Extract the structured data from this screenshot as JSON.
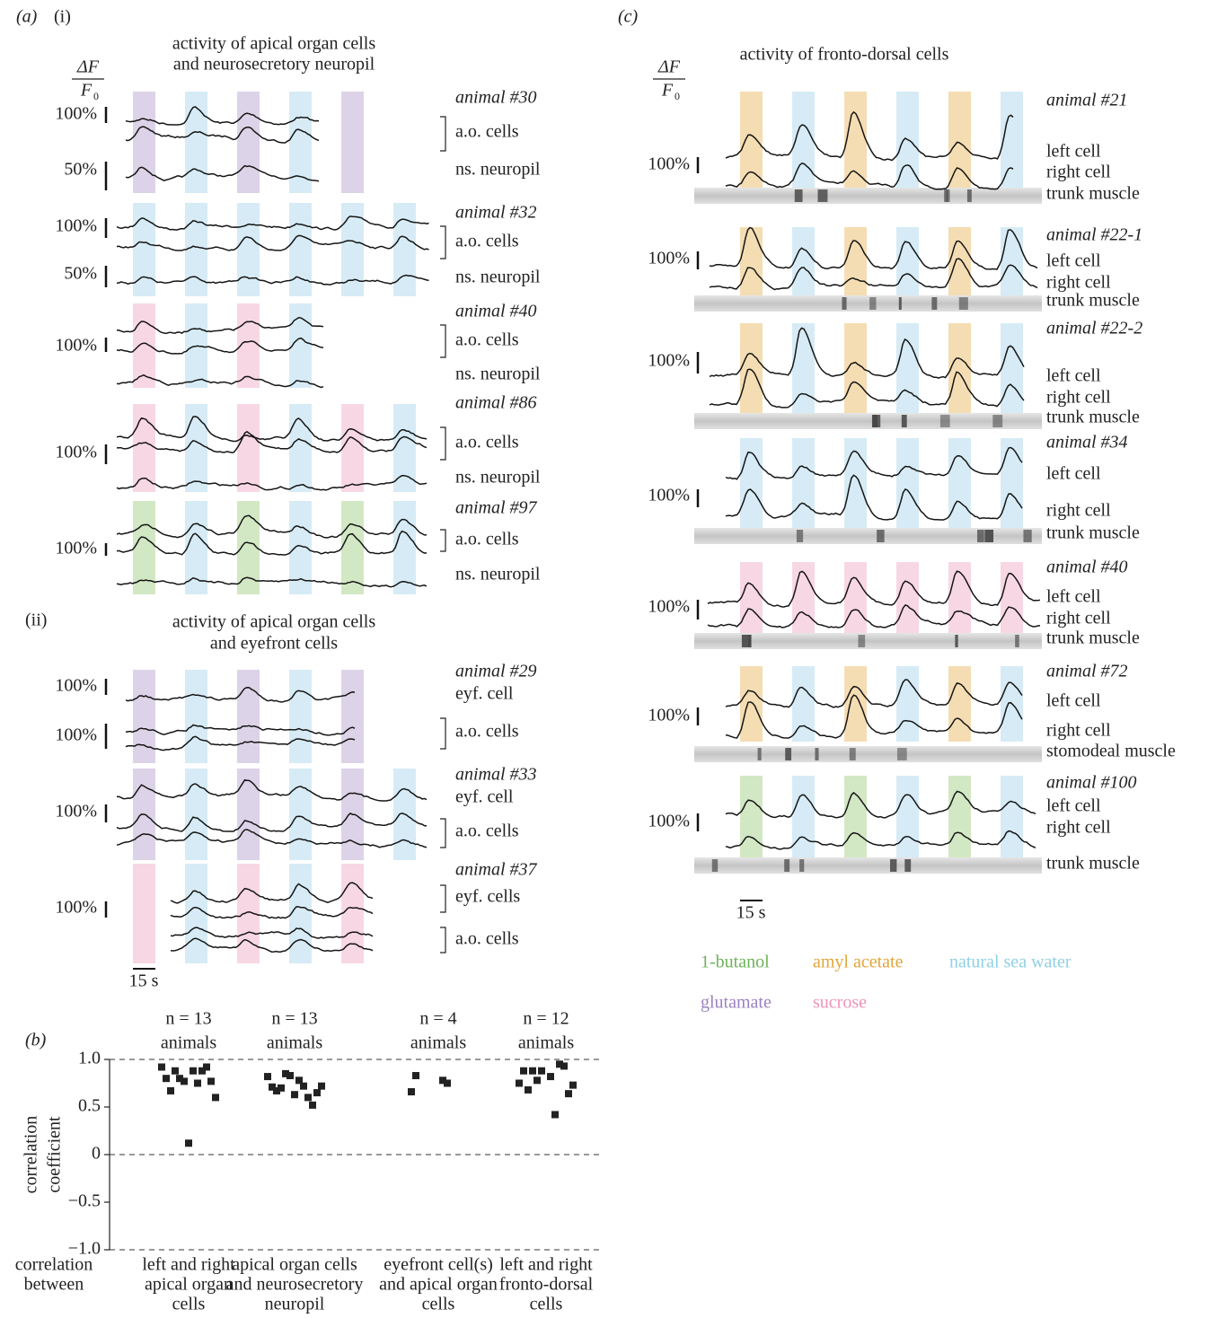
{
  "panel_a": {
    "label": "(a)",
    "sublabel": "(i)",
    "title": [
      "activity of apical organ cells",
      "and neurosecretory neuropil"
    ],
    "delta_f": "ΔF",
    "f0": "F",
    "f0_sub": "0",
    "animals": [
      {
        "name": "animal #30",
        "bands": [
          "#ddd3e8",
          "#d6ebf5",
          "#ddd3e8",
          "#d6ebf5",
          "#ddd3e8",
          null
        ],
        "labels": [
          "100%",
          "a.o. cells",
          "50%",
          "ns. neuropil"
        ]
      },
      {
        "name": "animal #32",
        "bands": [
          "#d6ebf5",
          "#d6ebf5",
          "#d6ebf5",
          "#d6ebf5",
          "#d6ebf5",
          "#d6ebf5"
        ],
        "labels": [
          "100%",
          "a.o. cells",
          "50%",
          "ns. neuropil"
        ]
      },
      {
        "name": "animal #40",
        "bands": [
          "#f8d7e5",
          "#d6ebf5",
          "#f8d7e5",
          "#d6ebf5",
          null,
          null
        ],
        "labels": [
          "100%",
          "a.o. cells",
          "ns. neuropil"
        ]
      },
      {
        "name": "animal #86",
        "bands": [
          "#f8d7e5",
          "#d6ebf5",
          "#f8d7e5",
          "#d6ebf5",
          "#f8d7e5",
          "#d6ebf5"
        ],
        "labels": [
          "100%",
          "a.o. cells",
          "ns. neuropil"
        ]
      },
      {
        "name": "animal #97",
        "bands": [
          "#d2e8c4",
          "#d6ebf5",
          "#d2e8c4",
          "#d6ebf5",
          "#d2e8c4",
          "#d6ebf5"
        ],
        "labels": [
          "100%",
          "a.o. cells",
          "ns. neuropil"
        ]
      }
    ],
    "sublabel_ii": "(ii)",
    "title_ii": [
      "activity of apical organ cells",
      "and eyefront cells"
    ],
    "animals_ii": [
      {
        "name": "animal #29",
        "bands": [
          "#ddd3e8",
          "#d6ebf5",
          "#ddd3e8",
          "#d6ebf5",
          "#ddd3e8",
          null
        ],
        "labels": [
          "100%",
          "eyf. cell",
          "100%",
          "a.o. cells"
        ]
      },
      {
        "name": "animal #33",
        "bands": [
          "#ddd3e8",
          "#d6ebf5",
          "#ddd3e8",
          "#d6ebf5",
          "#ddd3e8",
          "#d6ebf5"
        ],
        "labels": [
          "eyf. cell",
          "100%",
          "a.o. cells"
        ]
      },
      {
        "name": "animal #37",
        "bands": [
          "#f8d7e5",
          "#d6ebf5",
          "#f8d7e5",
          "#d6ebf5",
          "#f8d7e5",
          null
        ],
        "labels": [
          "eyf. cells",
          "100%",
          "a.o. cells"
        ]
      }
    ],
    "scale": "15 s"
  },
  "panel_c": {
    "label": "(c)",
    "title": "activity of fronto-dorsal cells",
    "delta_f": "ΔF",
    "f0": "F",
    "f0_sub": "0",
    "animals": [
      {
        "name": "animal #21",
        "bands": [
          "#f5ddb3",
          "#d6ebf5",
          "#f5ddb3",
          "#d6ebf5",
          "#f5ddb3",
          "#d6ebf5"
        ],
        "labels": [
          "100%",
          "left cell",
          "right cell",
          "trunk muscle"
        ]
      },
      {
        "name": "animal #22-1",
        "bands": [
          "#f5ddb3",
          "#d6ebf5",
          "#f5ddb3",
          "#d6ebf5",
          "#f5ddb3",
          "#d6ebf5"
        ],
        "labels": [
          "100%",
          "left cell",
          "right cell",
          "trunk muscle"
        ]
      },
      {
        "name": "animal #22-2",
        "bands": [
          "#f5ddb3",
          "#d6ebf5",
          "#f5ddb3",
          "#d6ebf5",
          "#f5ddb3",
          "#d6ebf5"
        ],
        "labels": [
          "100%",
          "left cell",
          "right cell",
          "trunk muscle"
        ]
      },
      {
        "name": "animal #34",
        "bands": [
          "#d6ebf5",
          "#d6ebf5",
          "#d6ebf5",
          "#d6ebf5",
          "#d6ebf5",
          "#d6ebf5"
        ],
        "labels": [
          "100%",
          "left cell",
          "right cell",
          "trunk muscle"
        ]
      },
      {
        "name": "animal #40",
        "bands": [
          "#f8d7e5",
          "#f8d7e5",
          "#f8d7e5",
          "#f8d7e5",
          "#f8d7e5",
          "#f8d7e5"
        ],
        "labels": [
          "100%",
          "left cell",
          "right cell",
          "trunk muscle"
        ]
      },
      {
        "name": "animal #72",
        "bands": [
          "#f5ddb3",
          "#d6ebf5",
          "#f5ddb3",
          "#d6ebf5",
          "#f5ddb3",
          "#d6ebf5"
        ],
        "labels": [
          "100%",
          "left cell",
          "right cell",
          "stomodeal muscle"
        ]
      },
      {
        "name": "animal #100",
        "bands": [
          "#d2e8c4",
          "#d6ebf5",
          "#d2e8c4",
          "#d6ebf5",
          "#d2e8c4",
          "#d6ebf5"
        ],
        "labels": [
          "100%",
          "left cell",
          "right cell",
          "trunk muscle"
        ]
      }
    ],
    "scale": "15 s",
    "legend": [
      {
        "name": "1-butanol",
        "color": "#6db35a"
      },
      {
        "name": "amyl acetate",
        "color": "#e3a53a"
      },
      {
        "name": "natural sea water",
        "color": "#8fd0e3"
      },
      {
        "name": "glutamate",
        "color": "#9a82c2"
      },
      {
        "name": "sucrose",
        "color": "#ef92b8"
      }
    ]
  },
  "chart_data": {
    "type": "scatter",
    "label": "(b)",
    "ylabel": [
      "correlation",
      "coefficient"
    ],
    "xlabel": [
      "correlation",
      "between"
    ],
    "categories": [
      [
        "left and right",
        "apical organ",
        "cells"
      ],
      [
        "apical organ cells",
        "and neurosecretory",
        "neuropil"
      ],
      [
        "eyefront cell(s)",
        "and apical organ",
        "cells"
      ],
      [
        "left and right",
        "fronto-dorsal",
        "cells"
      ]
    ],
    "groups": [
      {
        "n_label": "n = 13",
        "unit": "animals",
        "values": [
          0.92,
          0.88,
          0.8,
          0.75,
          0.67,
          0.88,
          0.88,
          0.92,
          0.8,
          0.77,
          0.77,
          0.6,
          0.12
        ]
      },
      {
        "n_label": "n = 13",
        "unit": "animals",
        "values": [
          0.82,
          0.78,
          0.71,
          0.72,
          0.67,
          0.6,
          0.7,
          0.52,
          0.85,
          0.65,
          0.83,
          0.72,
          0.63
        ]
      },
      {
        "n_label": "n = 4",
        "unit": "animals",
        "values": [
          0.66,
          0.78,
          0.83,
          0.75
        ]
      },
      {
        "n_label": "n = 12",
        "unit": "animals",
        "values": [
          0.75,
          0.82,
          0.88,
          0.42,
          0.68,
          0.95,
          0.88,
          0.93,
          0.78,
          0.64,
          0.88,
          0.73
        ]
      }
    ],
    "color": "#222222",
    "ylim": [
      -1,
      1
    ],
    "yticks": [
      {
        "value": 1,
        "label": "1.0"
      },
      0.5,
      0,
      {
        "value": -0.5,
        "label": "−0.5"
      },
      {
        "value": -1,
        "label": "−1.0"
      }
    ]
  }
}
